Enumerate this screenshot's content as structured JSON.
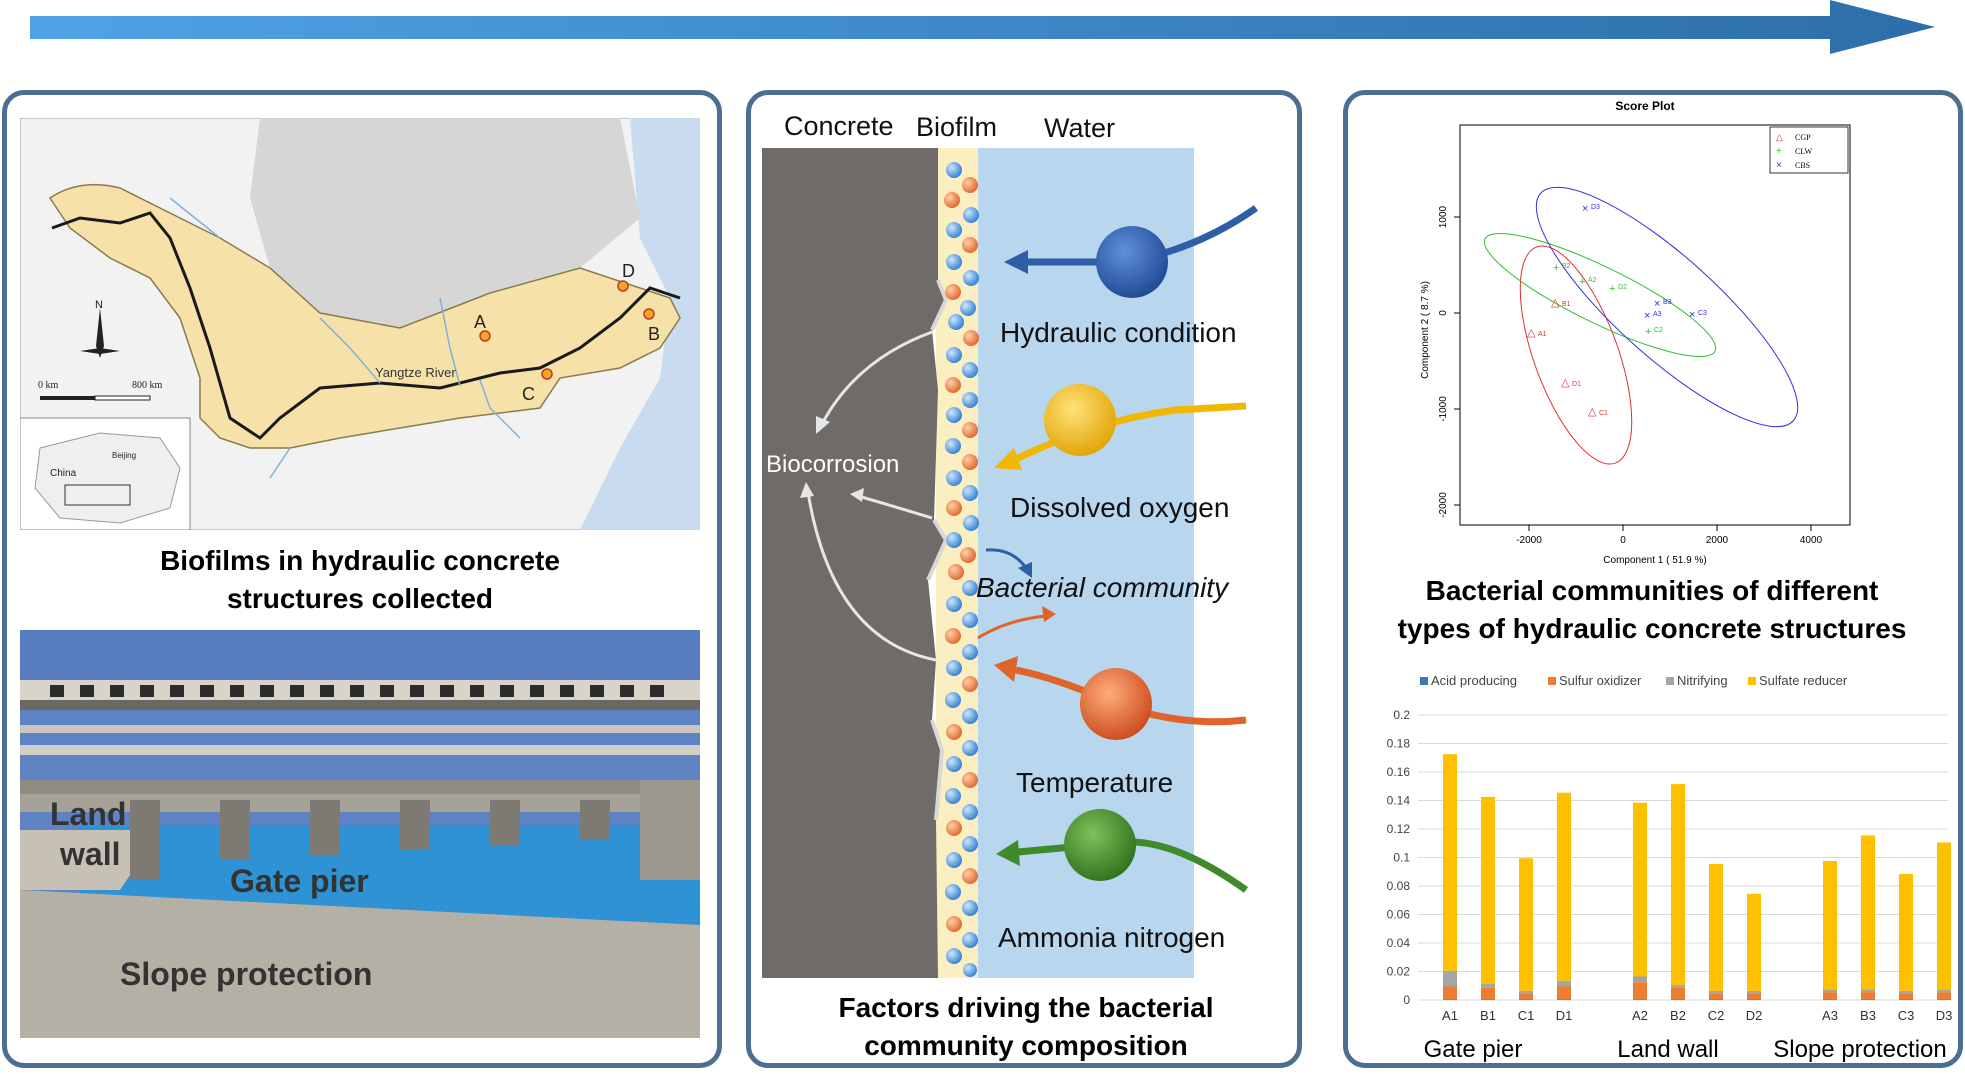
{
  "panel1": {
    "map": {
      "site_labels": [
        "A",
        "B",
        "C",
        "D"
      ],
      "river_label": "Yangtze River",
      "north_label": "N",
      "scale_start": "0 km",
      "scale_end": "800 km",
      "inset_country": "China",
      "inset_city": "Beijing"
    },
    "caption_line1": "Biofilms in hydraulic concrete",
    "caption_line2": "structures  collected",
    "illustration": {
      "land_wall_line1": "Land",
      "land_wall_line2": "wall",
      "gate_pier": "Gate pier",
      "slope_protection": "Slope protection"
    }
  },
  "panel2": {
    "headers": {
      "concrete": "Concrete",
      "biofilm": "Biofilm",
      "water": "Water"
    },
    "factors": [
      "Hydraulic condition",
      "Dissolved oxygen",
      "Temperature",
      "Ammonia nitrogen"
    ],
    "factor_colors": [
      "#2e5fa6",
      "#f2b705",
      "#e0642a",
      "#3f8a2a"
    ],
    "biocorrosion": "Biocorrosion",
    "bacterial_community": "Bacterial community",
    "caption_line1": "Factors driving the bacterial",
    "caption_line2": "community composition"
  },
  "panel3": {
    "score_plot": {
      "title": "Score Plot",
      "xlabel": "Component 1 ( 51.9 %)",
      "ylabel": "Component 2 ( 8.7 %)",
      "xticks": [
        "-2000",
        "0",
        "2000",
        "4000"
      ],
      "yticks": [
        "1000",
        "0",
        "-1000",
        "-2000"
      ],
      "legend": [
        {
          "symbol": "△",
          "label": "CGP",
          "color": "#e03030"
        },
        {
          "symbol": "+",
          "label": "CLW",
          "color": "#2fbf2f"
        },
        {
          "symbol": "×",
          "label": "CBS",
          "color": "#3030e0"
        }
      ],
      "points": [
        {
          "label": "A1",
          "group": "CGP"
        },
        {
          "label": "B1",
          "group": "CGP"
        },
        {
          "label": "C1",
          "group": "CGP"
        },
        {
          "label": "D1",
          "group": "CGP"
        },
        {
          "label": "A2",
          "group": "CLW"
        },
        {
          "label": "B2",
          "group": "CLW"
        },
        {
          "label": "C2",
          "group": "CLW"
        },
        {
          "label": "D2",
          "group": "CLW"
        },
        {
          "label": "A3",
          "group": "CBS"
        },
        {
          "label": "B3",
          "group": "CBS"
        },
        {
          "label": "C3",
          "group": "CBS"
        },
        {
          "label": "D3",
          "group": "CBS"
        }
      ]
    },
    "caption_line1": "Bacterial communities of different",
    "caption_line2": "types of hydraulic concrete structures",
    "group_labels": [
      "Gate pier",
      "Land wall",
      "Slope protection"
    ]
  },
  "chart_data": {
    "type": "bar",
    "stacked": true,
    "categories": [
      "A1",
      "B1",
      "C1",
      "D1",
      "A2",
      "B2",
      "C2",
      "D2",
      "A3",
      "B3",
      "C3",
      "D3"
    ],
    "groups": [
      {
        "name": "Gate pier",
        "categories": [
          "A1",
          "B1",
          "C1",
          "D1"
        ]
      },
      {
        "name": "Land wall",
        "categories": [
          "A2",
          "B2",
          "C2",
          "D2"
        ]
      },
      {
        "name": "Slope protection",
        "categories": [
          "A3",
          "B3",
          "C3",
          "D3"
        ]
      }
    ],
    "series": [
      {
        "name": "Acid producing",
        "color": "#3b78c3",
        "values": [
          0.0005,
          0.0005,
          0.0005,
          0.0005,
          0.0005,
          0.0005,
          0.0005,
          0.0005,
          0.0005,
          0.0005,
          0.0005,
          0.0005
        ]
      },
      {
        "name": "Sulfur oxidizer",
        "color": "#ed7d31",
        "values": [
          0.009,
          0.008,
          0.004,
          0.009,
          0.012,
          0.008,
          0.004,
          0.004,
          0.005,
          0.005,
          0.004,
          0.005
        ]
      },
      {
        "name": "Nitrifying",
        "color": "#a5a5a5",
        "values": [
          0.011,
          0.003,
          0.002,
          0.004,
          0.004,
          0.002,
          0.002,
          0.002,
          0.002,
          0.002,
          0.002,
          0.002
        ]
      },
      {
        "name": "Sulfate reducer",
        "color": "#ffc000",
        "values": [
          0.152,
          0.131,
          0.093,
          0.132,
          0.122,
          0.141,
          0.089,
          0.068,
          0.09,
          0.108,
          0.082,
          0.103
        ]
      }
    ],
    "ylim": [
      0,
      0.2
    ],
    "yticks": [
      "0",
      "0.02",
      "0.04",
      "0.06",
      "0.08",
      "0.1",
      "0.12",
      "0.14",
      "0.16",
      "0.18",
      "0.2"
    ],
    "legend_position": "top",
    "grid": true
  }
}
